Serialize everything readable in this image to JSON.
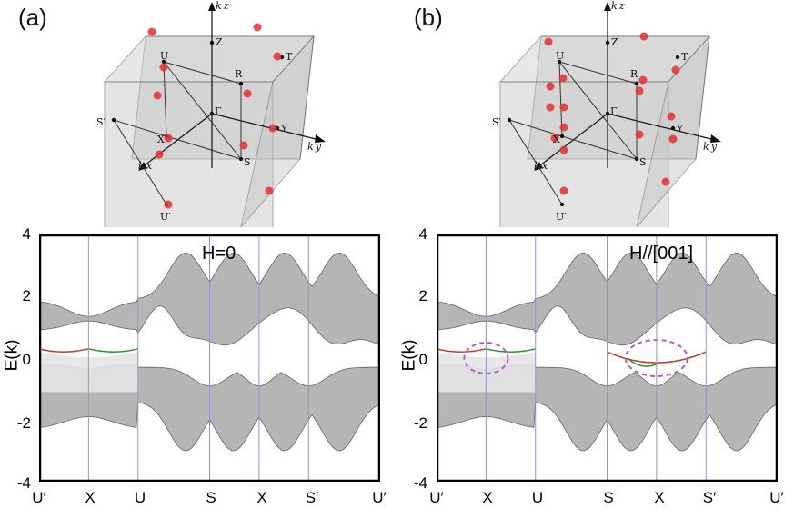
{
  "panels": [
    {
      "letter": "(a)",
      "field_label": "H=0",
      "ylabel": "E(k)",
      "yticks": [
        "4",
        "2",
        "0",
        "-2",
        "-4"
      ],
      "xticks": [
        "U′",
        "X",
        "U",
        "S",
        "X",
        "S′",
        "U′"
      ],
      "bz_labels": {
        "kz": "k z",
        "ky": "k y",
        "kx": "k x",
        "Z": "Z",
        "T": "T",
        "U": "U",
        "R": "R",
        "Gamma": "Γ",
        "Y": "Y",
        "Sp": "S′",
        "X": "X",
        "S": "S",
        "Up": "U′"
      }
    },
    {
      "letter": "(b)",
      "field_label": "H//[001]",
      "ylabel": "E(k)",
      "yticks": [
        "4",
        "2",
        "0",
        "-2",
        "-4"
      ],
      "xticks": [
        "U′",
        "X",
        "U",
        "S",
        "X",
        "S′",
        "U′"
      ],
      "bz_labels": {
        "kz": "k z",
        "ky": "k y",
        "kx": "k x",
        "Z": "Z",
        "T": "T",
        "U": "U",
        "R": "R",
        "Gamma": "Γ",
        "Y": "Y",
        "Sp": "S′",
        "X": "X",
        "S": "S",
        "Up": "U′"
      }
    }
  ],
  "chart_data": [
    {
      "type": "line",
      "title": "H=0",
      "ylabel": "E(k)",
      "ylim": [
        -4,
        4
      ],
      "x_path": [
        "U′",
        "X",
        "U",
        "S",
        "X",
        "S′",
        "U′"
      ],
      "grid": "vertical lines at high-symmetry points"
    },
    {
      "type": "line",
      "title": "H//[001]",
      "ylabel": "E(k)",
      "ylim": [
        -4,
        4
      ],
      "x_path": [
        "U′",
        "X",
        "U",
        "S",
        "X",
        "S′",
        "U′"
      ],
      "grid": "vertical lines at high-symmetry points"
    }
  ],
  "colors": {
    "band_fill": "#a9a9a9",
    "band_edge": "#4a4a4a",
    "weyl_point": "#e53030",
    "green_arc": "#2e8b2e",
    "red_arc": "#c0392b",
    "circle": "#b45cc0",
    "grid": "#8f97cf"
  }
}
